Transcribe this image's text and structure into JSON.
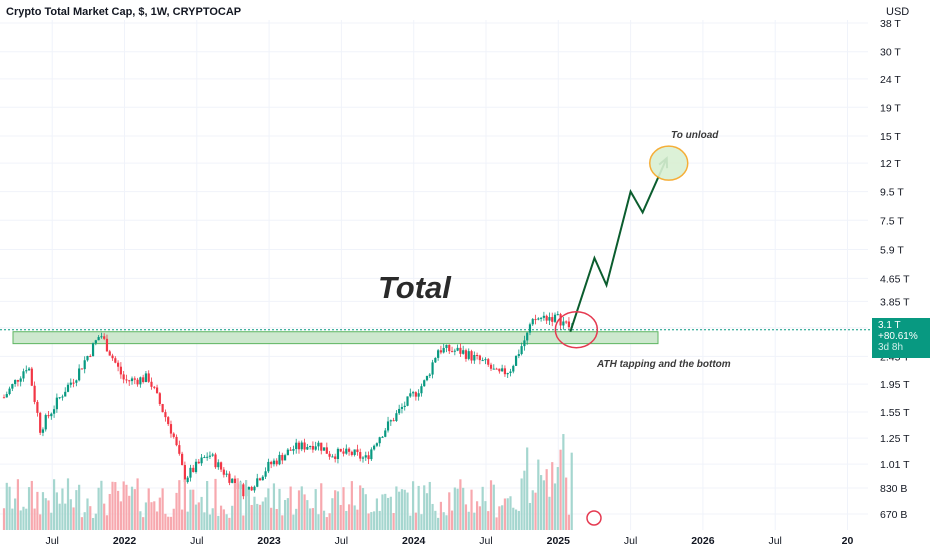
{
  "header": {
    "title": "Crypto Total Market Cap, $, 1W, CRYPTOCAP",
    "currency": "USD"
  },
  "price_label": {
    "price": "3.1 T",
    "change": "+80.61%",
    "timer": "3d 8h"
  },
  "annotations": {
    "main": "Total",
    "target": "To unload",
    "support": "ATH tapping and the bottom"
  },
  "colors": {
    "up": "#089981",
    "down": "#f23645",
    "volume_up": "#a5d6cf",
    "volume_down": "#f7a8ae",
    "zone_fill": "#c8e6c9",
    "zone_stroke": "#4caf50",
    "projection": "#0b5d2e",
    "target_fill": "#d9f0d3",
    "target_stroke": "#f5a623",
    "circle_red": "#e53950"
  },
  "chart_data": {
    "type": "candlestick",
    "title": "Crypto Total Market Cap, $, 1W, CRYPTOCAP",
    "y_unit": "USD",
    "y_scale": "log",
    "y_ticks": [
      "670 B",
      "830 B",
      "1.01 T",
      "1.25 T",
      "1.55 T",
      "1.95 T",
      "2.45 T",
      "3.1 T",
      "3.85 T",
      "4.65 T",
      "5.9 T",
      "7.5 T",
      "9.5 T",
      "12 T",
      "15 T",
      "19 T",
      "24 T",
      "30 T",
      "38 T"
    ],
    "x_ticks": [
      "Jul",
      "2022",
      "Jul",
      "2023",
      "Jul",
      "2024",
      "Jul",
      "2025",
      "Jul",
      "2026",
      "Jul",
      "20"
    ],
    "x_range": [
      "2021-03",
      "2026-12"
    ],
    "close_series": [
      {
        "date": "2021-03",
        "value": 1.75
      },
      {
        "date": "2021-05",
        "value": 2.3
      },
      {
        "date": "2021-06",
        "value": 1.35
      },
      {
        "date": "2021-08",
        "value": 1.85
      },
      {
        "date": "2021-09",
        "value": 2.1
      },
      {
        "date": "2021-11",
        "value": 2.95
      },
      {
        "date": "2022-01",
        "value": 2.0
      },
      {
        "date": "2022-03",
        "value": 2.05
      },
      {
        "date": "2022-05",
        "value": 1.3
      },
      {
        "date": "2022-06",
        "value": 0.9
      },
      {
        "date": "2022-08",
        "value": 1.1
      },
      {
        "date": "2022-09",
        "value": 0.97
      },
      {
        "date": "2022-11",
        "value": 0.8
      },
      {
        "date": "2023-01",
        "value": 1.0
      },
      {
        "date": "2023-03",
        "value": 1.15
      },
      {
        "date": "2023-05",
        "value": 1.2
      },
      {
        "date": "2023-06",
        "value": 1.1
      },
      {
        "date": "2023-08",
        "value": 1.1
      },
      {
        "date": "2023-09",
        "value": 1.05
      },
      {
        "date": "2023-10",
        "value": 1.25
      },
      {
        "date": "2023-12",
        "value": 1.6
      },
      {
        "date": "2024-02",
        "value": 2.0
      },
      {
        "date": "2024-03",
        "value": 2.6
      },
      {
        "date": "2024-05",
        "value": 2.55
      },
      {
        "date": "2024-07",
        "value": 2.3
      },
      {
        "date": "2024-08",
        "value": 2.1
      },
      {
        "date": "2024-09",
        "value": 2.2
      },
      {
        "date": "2024-11",
        "value": 3.3
      },
      {
        "date": "2024-12",
        "value": 3.4
      },
      {
        "date": "2025-01",
        "value": 3.35
      },
      {
        "date": "2025-02",
        "value": 3.1
      }
    ],
    "projection": [
      {
        "date": "2025-02",
        "value": 3.0
      },
      {
        "date": "2025-04",
        "value": 5.5
      },
      {
        "date": "2025-05",
        "value": 4.4
      },
      {
        "date": "2025-07",
        "value": 9.5
      },
      {
        "date": "2025-08",
        "value": 8.0
      },
      {
        "date": "2025-10",
        "value": 12.5
      }
    ],
    "zones": [
      {
        "label": "ATH zone",
        "y_low": 2.72,
        "y_high": 3.0,
        "x_start": "2021-03",
        "x_end": "2025-04"
      }
    ],
    "target_value": 12.0
  }
}
